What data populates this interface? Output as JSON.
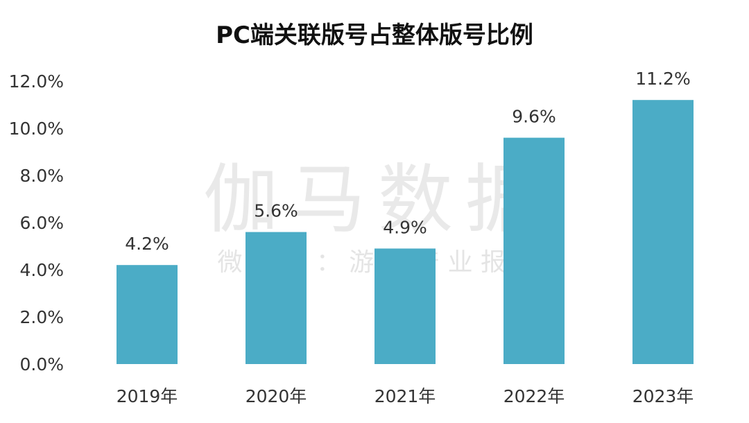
{
  "chart_data": {
    "type": "bar",
    "title": "PC端关联版号占整体版号比例",
    "xlabel": "",
    "ylabel": "",
    "categories": [
      "2019年",
      "2020年",
      "2021年",
      "2022年",
      "2023年"
    ],
    "values": [
      4.2,
      5.6,
      4.9,
      9.6,
      11.2
    ],
    "value_labels": [
      "4.2%",
      "5.6%",
      "4.9%",
      "9.6%",
      "11.2%"
    ],
    "ylim": [
      0,
      12
    ],
    "yticks": [
      0,
      2,
      4,
      6,
      8,
      10,
      12
    ],
    "ytick_labels": [
      "0.0%",
      "2.0%",
      "4.0%",
      "6.0%",
      "8.0%",
      "10.0%",
      "12.0%"
    ],
    "grid": false,
    "legend": "none",
    "bar_color": "#4bacc6"
  },
  "watermark": {
    "main": "伽马数据",
    "sub": "微 信 号 ： 游 戏 产 业 报 告"
  }
}
